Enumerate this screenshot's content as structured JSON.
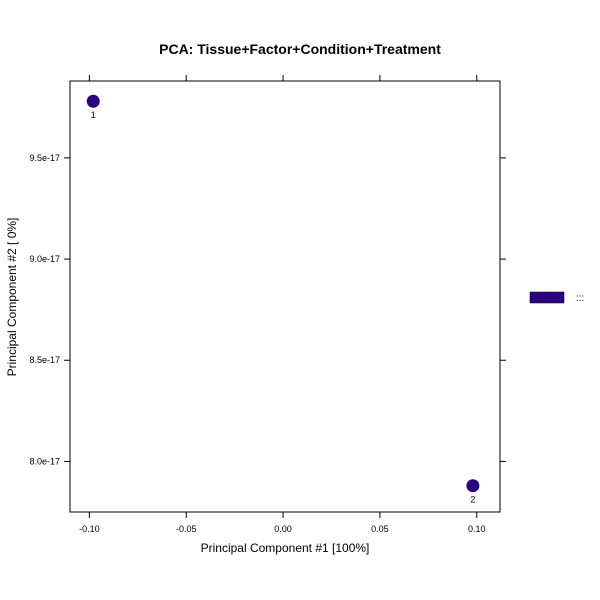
{
  "chart_data": {
    "type": "scatter",
    "title": "PCA: Tissue+Factor+Condition+Treatment",
    "xlabel": "Principal Component #1 [100%]",
    "ylabel": "Principal Component #2 [ 0%]",
    "xlim": [
      -0.11,
      0.112
    ],
    "ylim": [
      7.75e-17,
      9.88e-17
    ],
    "x_ticks": [
      -0.1,
      -0.05,
      0.0,
      0.05,
      0.1
    ],
    "x_tick_labels": [
      "-0.10",
      "-0.05",
      "0.00",
      "0.05",
      "0.10"
    ],
    "y_ticks": [
      8e-17,
      8.5e-17,
      9e-17,
      9.5e-17
    ],
    "y_tick_labels": [
      "8.0e-17",
      "8.5e-17",
      "9.0e-17",
      "9.5e-17"
    ],
    "grid": false,
    "legend_position": "right",
    "legend": [
      {
        "label": ":::",
        "color": "#2a0080"
      }
    ],
    "points": [
      {
        "x": -0.098,
        "y": 9.78e-17,
        "label": "1",
        "color": "#2a0080"
      },
      {
        "x": 0.098,
        "y": 7.88e-17,
        "label": "2",
        "color": "#2a0080"
      }
    ]
  }
}
